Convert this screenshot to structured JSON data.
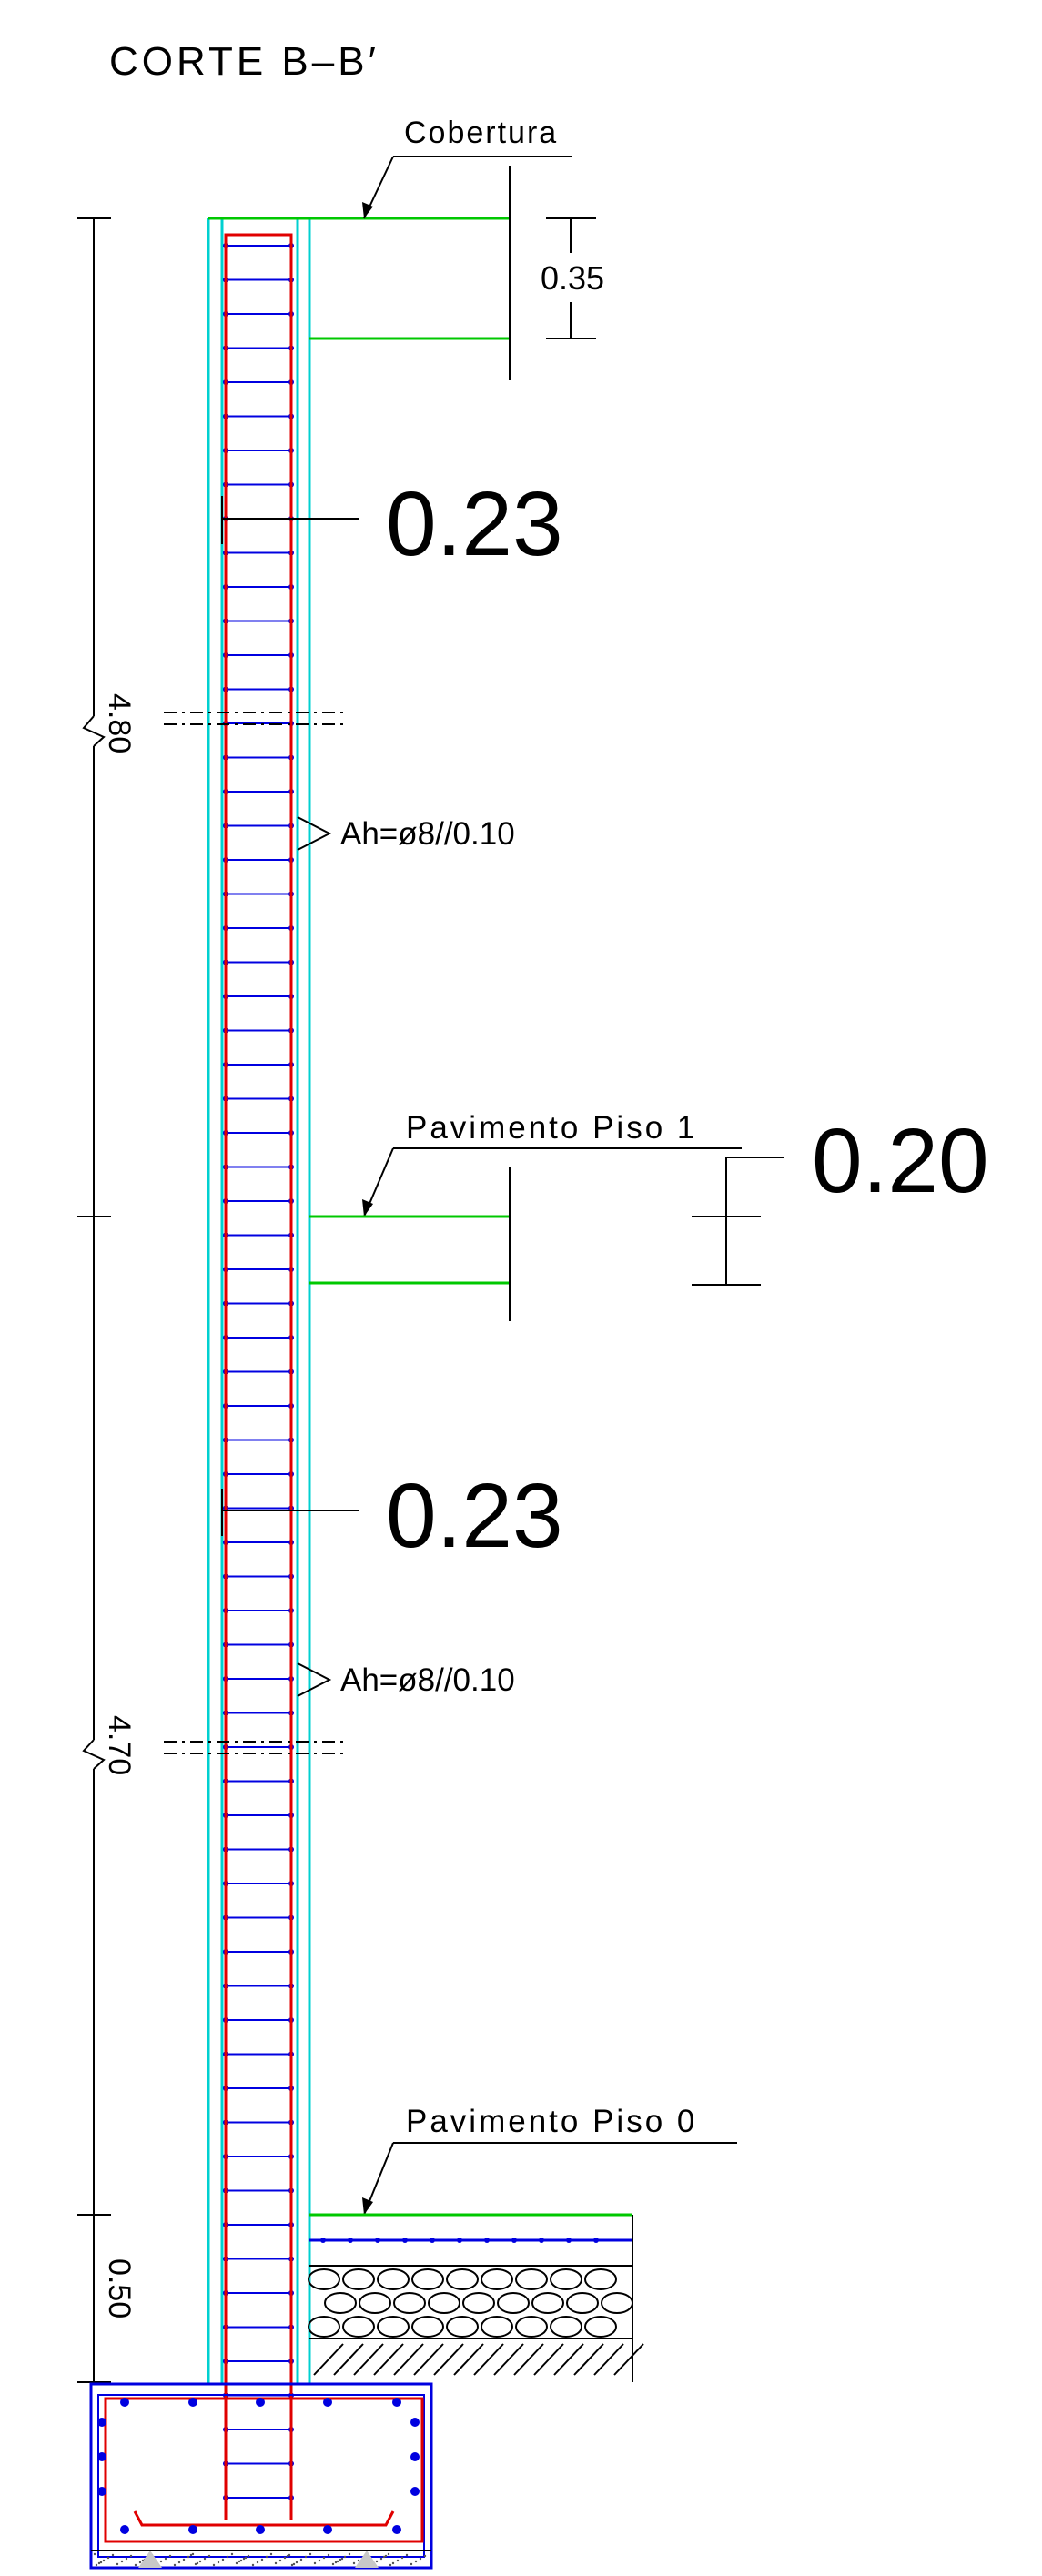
{
  "title": "CORTE B–B′",
  "levels": {
    "roof": "Cobertura",
    "floor1": "Pavimento  Piso  1",
    "floor0": "Pavimento  Piso  0"
  },
  "dimensions": {
    "upper_height": "4.80",
    "lower_height": "4.70",
    "base_height": "0.50",
    "roof_slab_thickness": "0.35",
    "floor1_slab_thickness": "0.20",
    "wall_thickness_upper": "0.23",
    "wall_thickness_lower": "0.23"
  },
  "rebar": {
    "upper_note": "Ah=ø8//0.10",
    "lower_note": "Ah=ø8//0.10"
  },
  "colors": {
    "concrete_outline": "#00d0d0",
    "slab": "#00c800",
    "longitudinal_rebar": "#e00000",
    "stirrups": "#0000e0",
    "lines": "#000000"
  }
}
